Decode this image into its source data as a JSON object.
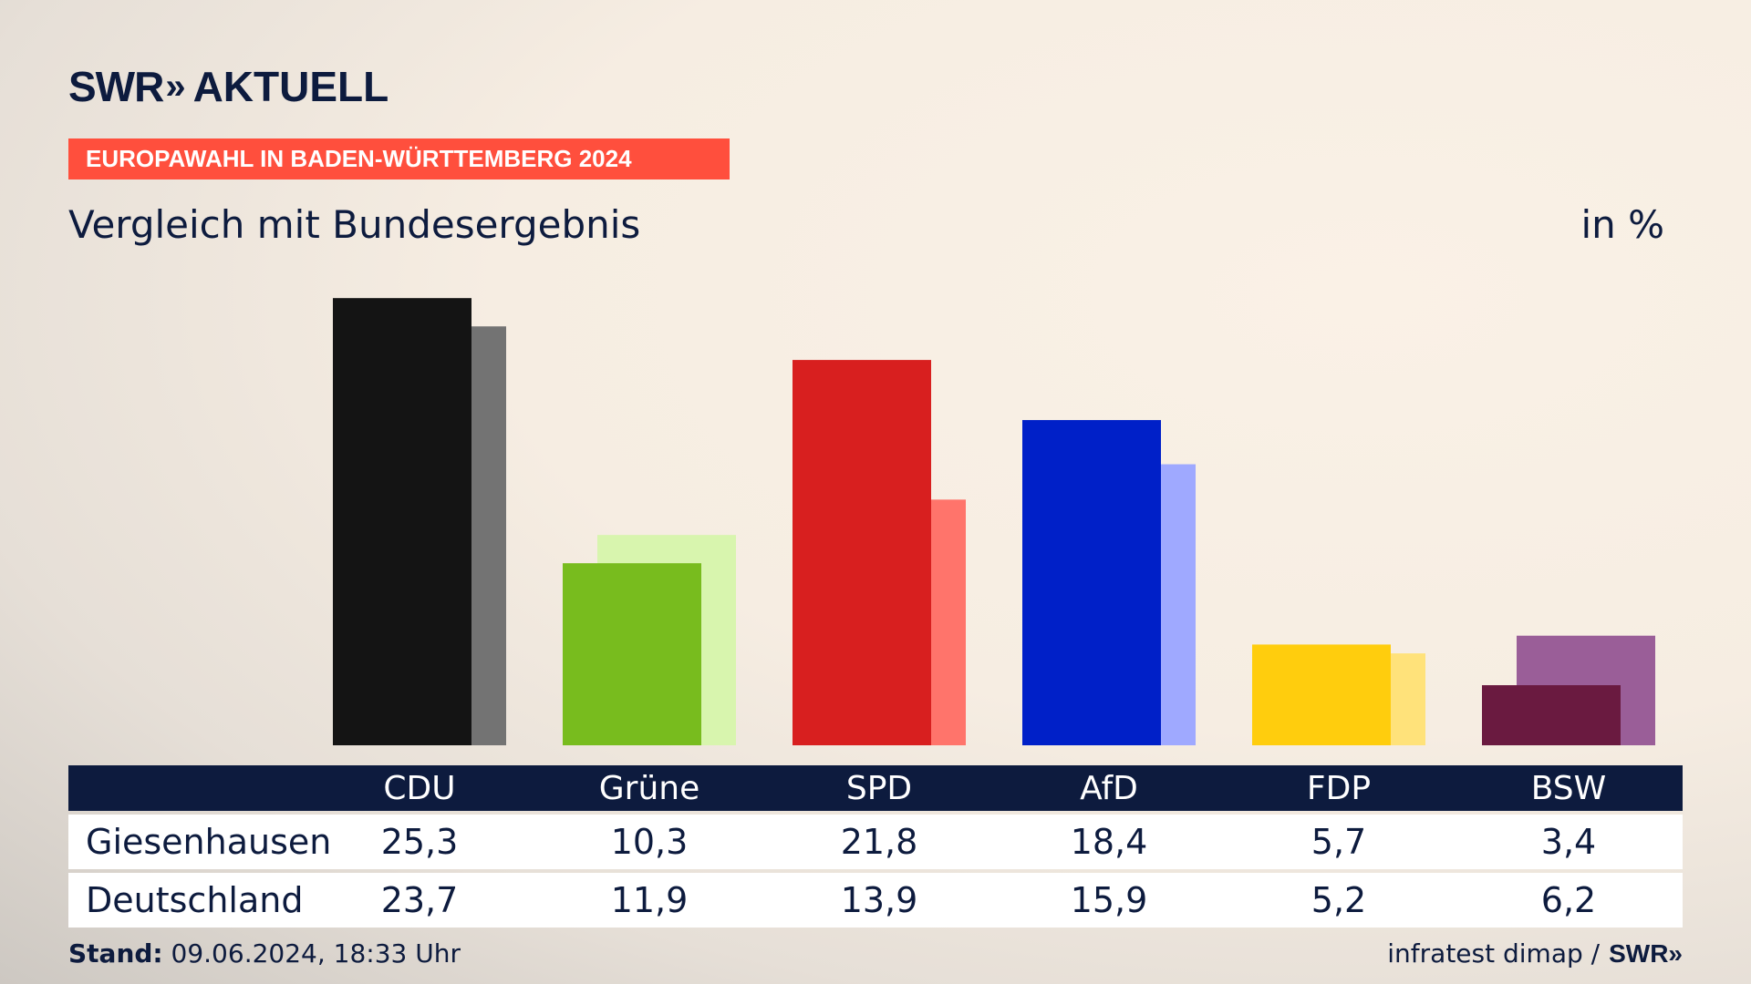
{
  "header": {
    "logo_swr": "SWR",
    "logo_chevrons": "»",
    "logo_name": "AKTUELL",
    "banner": "EUROPAWAHL IN BADEN-WÜRTTEMBERG 2024",
    "subtitle": "Vergleich mit Bundesergebnis",
    "unit": "in %"
  },
  "chart_data": {
    "type": "bar",
    "categories": [
      "CDU",
      "Grüne",
      "SPD",
      "AfD",
      "FDP",
      "BSW"
    ],
    "series": [
      {
        "name": "Giesenhausen",
        "values": [
          25.3,
          10.3,
          21.8,
          18.4,
          5.7,
          3.4
        ]
      },
      {
        "name": "Deutschland",
        "values": [
          23.7,
          11.9,
          13.9,
          15.9,
          5.2,
          6.2
        ]
      }
    ],
    "colors_primary": [
      "#141414",
      "#78bc1e",
      "#d81f1f",
      "#0020c8",
      "#ffcd0d",
      "#6a1a40"
    ],
    "colors_secondary": [
      "#737373",
      "#d8f5ae",
      "#ff746b",
      "#9fa9ff",
      "#ffe27a",
      "#9a5e98"
    ]
  },
  "table": {
    "rows": [
      {
        "label": "Giesenhausen",
        "values": [
          "25,3",
          "10,3",
          "21,8",
          "18,4",
          "5,7",
          "3,4"
        ]
      },
      {
        "label": "Deutschland",
        "values": [
          "23,7",
          "11,9",
          "13,9",
          "15,9",
          "5,2",
          "6,2"
        ]
      }
    ]
  },
  "footer": {
    "stand_label": "Stand:",
    "stand_value": "09.06.2024, 18:33 Uhr",
    "source": "infratest dimap /",
    "logo_swr": "SWR»"
  }
}
